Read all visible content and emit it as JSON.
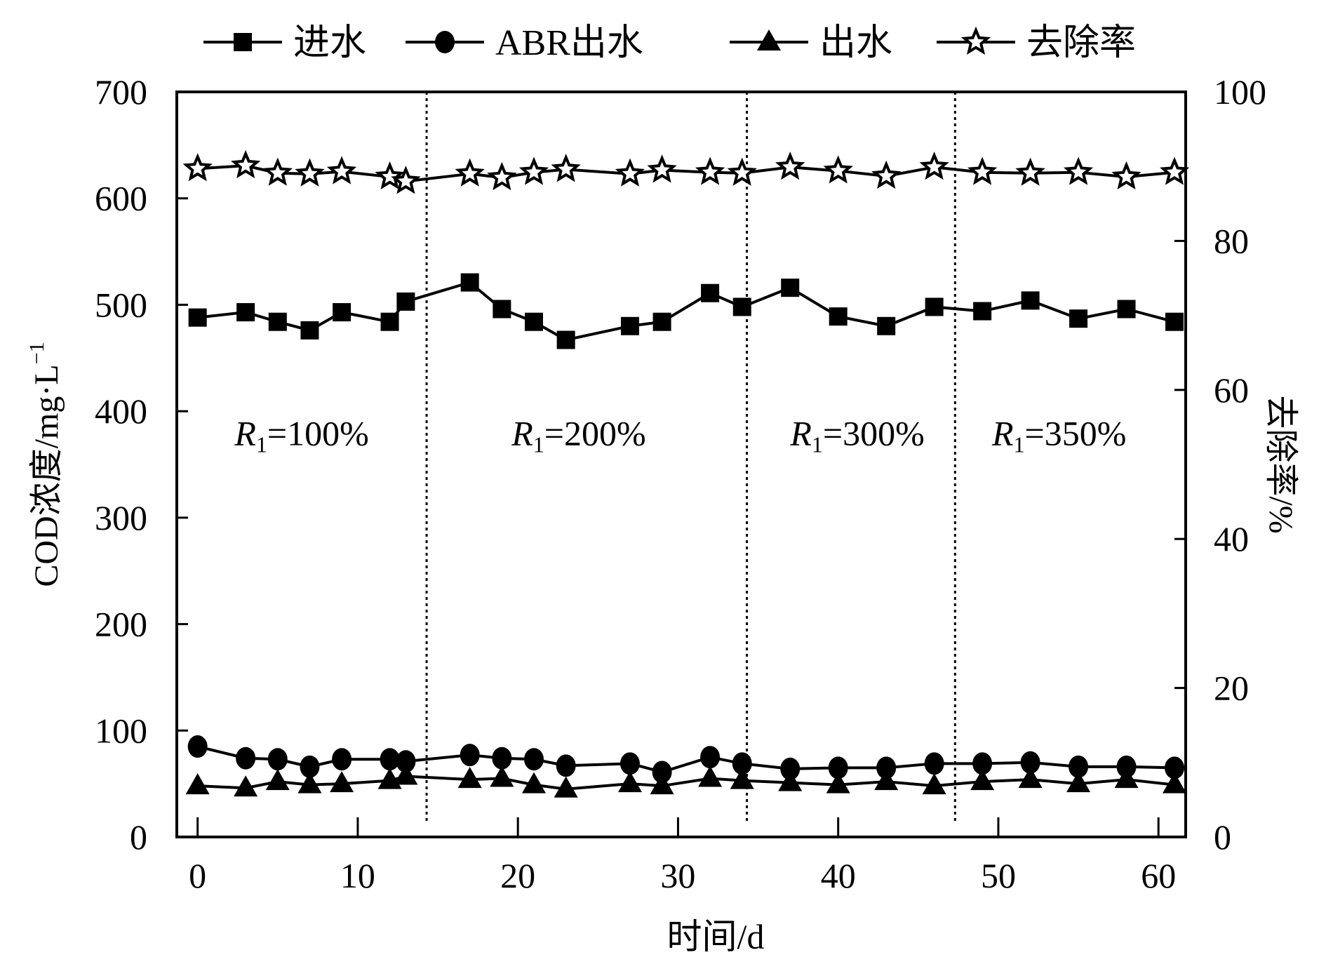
{
  "chart_data": {
    "type": "line",
    "xlabel": "时间/d",
    "ylabel": "COD浓度/mg·L",
    "ylabel_sup": "−1",
    "y2label": "去除率/%",
    "xlim": [
      -1.3,
      61.7
    ],
    "ylim": [
      0,
      700
    ],
    "y2lim": [
      0,
      100
    ],
    "xticks": [
      0,
      10,
      20,
      30,
      40,
      50,
      60
    ],
    "yticks": [
      0,
      100,
      200,
      300,
      400,
      500,
      600,
      700
    ],
    "y2ticks": [
      0,
      20,
      40,
      60,
      80,
      100
    ],
    "grid": false,
    "legend_position": "top",
    "x": [
      0,
      3,
      5,
      7,
      9,
      12,
      13,
      17,
      19,
      21,
      23,
      27,
      29,
      32,
      34,
      37,
      40,
      43,
      46,
      49,
      52,
      55,
      58,
      61
    ],
    "series": [
      {
        "name": "进水",
        "marker": "square",
        "axis": "left",
        "values": [
          488,
          493,
          484,
          476,
          493,
          484,
          503,
          521,
          496,
          484,
          467,
          480,
          484,
          511,
          498,
          516,
          489,
          480,
          498,
          494,
          504,
          487,
          496,
          484
        ]
      },
      {
        "name": "ABR出水",
        "marker": "circle",
        "axis": "left",
        "values": [
          85,
          74,
          73,
          66,
          73,
          73,
          71,
          77,
          74,
          73,
          67,
          69,
          61,
          75,
          69,
          64,
          65,
          65,
          69,
          69,
          70,
          66,
          66,
          65
        ]
      },
      {
        "name": "出水",
        "marker": "triangle",
        "axis": "left",
        "values": [
          48,
          46,
          52,
          49,
          50,
          53,
          57,
          54,
          55,
          49,
          45,
          50,
          48,
          55,
          53,
          51,
          49,
          52,
          48,
          52,
          54,
          50,
          54,
          49
        ]
      },
      {
        "name": "去除率",
        "marker": "star",
        "axis": "right",
        "values": [
          89.7,
          90.1,
          89.1,
          89.0,
          89.3,
          88.6,
          88.0,
          89.0,
          88.5,
          89.2,
          89.6,
          89.0,
          89.5,
          89.2,
          89.1,
          89.9,
          89.4,
          88.7,
          89.9,
          89.2,
          89.1,
          89.2,
          88.6,
          89.2
        ]
      }
    ],
    "phase_boundaries": [
      14.3,
      34.3,
      47.3
    ],
    "annotations": [
      {
        "label_var": "R",
        "label_sub": "1",
        "label_rest": "=100%",
        "x": 6.5,
        "y": 380
      },
      {
        "label_var": "R",
        "label_sub": "1",
        "label_rest": "=200%",
        "x": 23.8,
        "y": 380
      },
      {
        "label_var": "R",
        "label_sub": "1",
        "label_rest": "=300%",
        "x": 41.2,
        "y": 380
      },
      {
        "label_var": "R",
        "label_sub": "1",
        "label_rest": "=350%",
        "x": 53.8,
        "y": 380
      }
    ]
  }
}
